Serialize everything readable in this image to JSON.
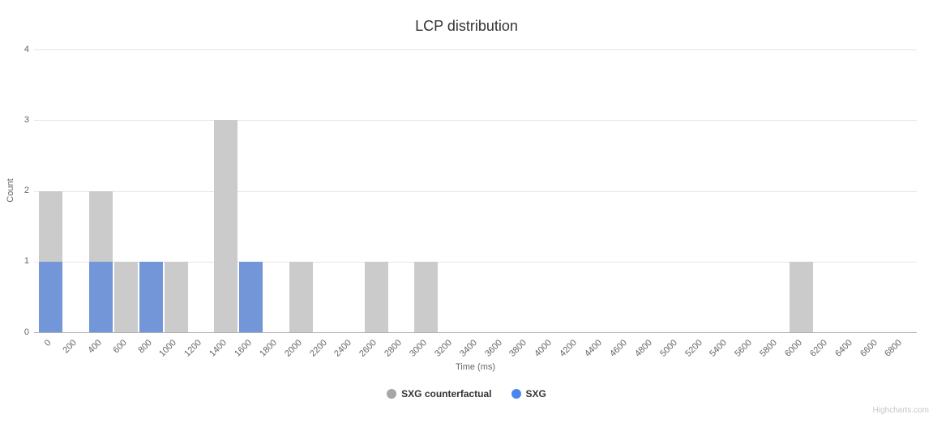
{
  "chart": {
    "credits": "Highcharts.com"
  },
  "chart_data": {
    "type": "bar",
    "title": "LCP distribution",
    "xlabel": "Time (ms)",
    "ylabel": "Count",
    "bin_width_ms": 200,
    "x_tick_labels": [
      "0",
      "200",
      "400",
      "600",
      "800",
      "1000",
      "1200",
      "1400",
      "1600",
      "1800",
      "2000",
      "2200",
      "2400",
      "2600",
      "2800",
      "3000",
      "3200",
      "3400",
      "3600",
      "3800",
      "4000",
      "4200",
      "4400",
      "4600",
      "4800",
      "5000",
      "5200",
      "5400",
      "5600",
      "5800",
      "6000",
      "6200",
      "6400",
      "6600",
      "6800"
    ],
    "y_ticks": [
      0,
      1,
      2,
      3,
      4
    ],
    "ylim": [
      0,
      4
    ],
    "grid": "horizontal-only",
    "legend_position": "bottom-center",
    "series": [
      {
        "name": "SXG counterfactual",
        "bar_color": "#cbcbcb",
        "legend_marker_color": "#a6a6a6",
        "values": [
          2,
          0,
          2,
          1,
          0,
          1,
          0,
          3,
          0,
          0,
          1,
          0,
          0,
          1,
          0,
          1,
          0,
          0,
          0,
          0,
          0,
          0,
          0,
          0,
          0,
          0,
          0,
          0,
          0,
          0,
          1,
          0,
          0,
          0,
          0
        ]
      },
      {
        "name": "SXG",
        "bar_color": "#7296d8",
        "legend_marker_color": "#4a86ee",
        "values": [
          1,
          0,
          1,
          0,
          1,
          0,
          0,
          0,
          1,
          0,
          0,
          0,
          0,
          0,
          0,
          0,
          0,
          0,
          0,
          0,
          0,
          0,
          0,
          0,
          0,
          0,
          0,
          0,
          0,
          0,
          0,
          0,
          0,
          0,
          0
        ]
      }
    ]
  }
}
